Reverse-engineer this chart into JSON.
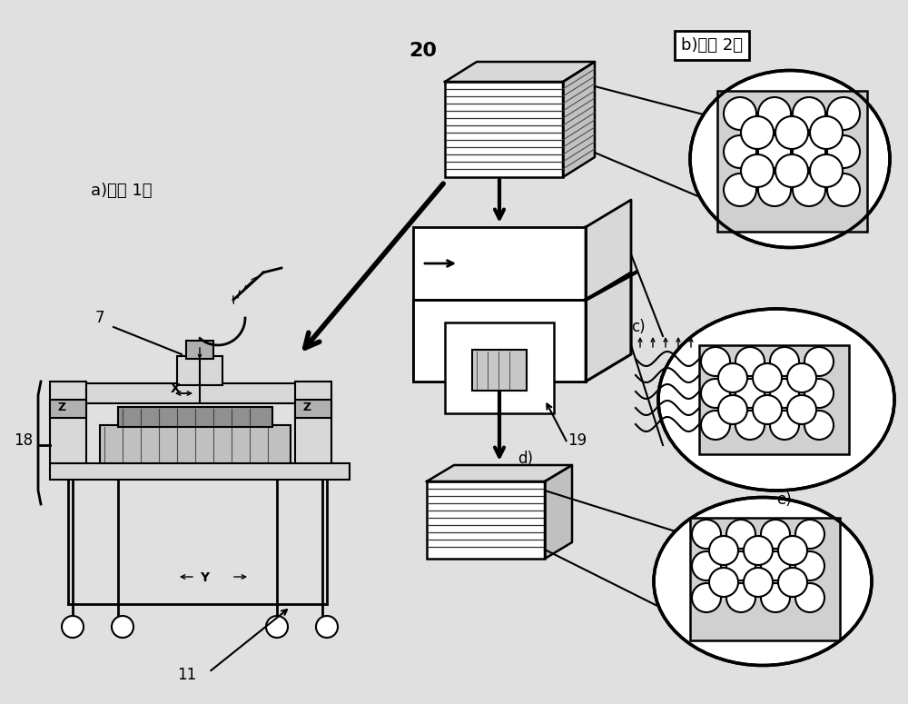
{
  "bg_color": "#e0e0e0",
  "black": "#000000",
  "white": "#ffffff",
  "gray_light": "#d8d8d8",
  "gray_mid": "#b0b0b0",
  "title_a": "a)阶段 1：",
  "title_b": "b)阶段 2：",
  "label_c": "c)",
  "label_d": "d)",
  "label_e": "e)",
  "label_7": "7",
  "label_11": "11",
  "label_18": "18",
  "label_19": "19",
  "label_20": "20",
  "label_X": "X",
  "label_Y": "Y",
  "label_Z": "Z"
}
